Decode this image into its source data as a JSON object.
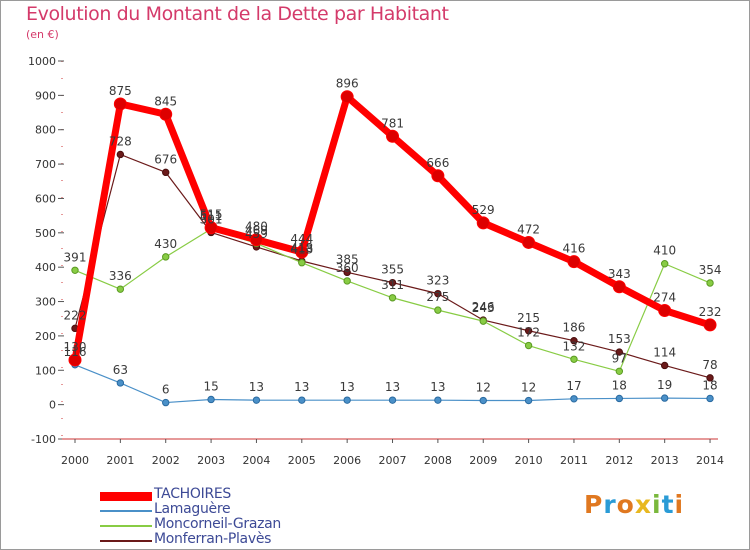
{
  "title": "Evolution du Montant de la Dette par Habitant",
  "unit_label": "(en €)",
  "logo": {
    "text": "Proxiti",
    "colors": [
      "#e07820",
      "#2a9bd6",
      "#e07820",
      "#e8b820",
      "#7ab83c",
      "#2a9bd6",
      "#e07820"
    ]
  },
  "chart_data": {
    "type": "line",
    "x": [
      "2000",
      "2001",
      "2002",
      "2003",
      "2004",
      "2005",
      "2006",
      "2007",
      "2008",
      "2009",
      "2010",
      "2011",
      "2012",
      "2013",
      "2014"
    ],
    "ylim": [
      -100,
      1000
    ],
    "yticks": [
      "-100",
      "0",
      "100",
      "200",
      "300",
      "400",
      "500",
      "600",
      "700",
      "800",
      "900",
      "1000"
    ],
    "grid": false,
    "legend_position": "bottom-left",
    "series": [
      {
        "name": "TACHOIRES",
        "color": "#ff0000",
        "values": [
          130,
          875,
          845,
          515,
          480,
          444,
          896,
          781,
          666,
          529,
          472,
          416,
          343,
          274,
          232
        ],
        "labels": [
          "130",
          "875",
          "845",
          "515",
          "480",
          "444",
          "896",
          "781",
          "666",
          "529",
          "472",
          "416",
          "343",
          "274",
          "232"
        ]
      },
      {
        "name": "Lamaguère",
        "color": "#4a90c8",
        "values": [
          116,
          63,
          6,
          15,
          13,
          13,
          13,
          13,
          13,
          12,
          12,
          17,
          18,
          19,
          18
        ],
        "labels": [
          "116",
          "63",
          "6",
          "15",
          "13",
          "13",
          "13",
          "13",
          "13",
          "12",
          "12",
          "17",
          "18",
          "19",
          "18"
        ]
      },
      {
        "name": "Moncorneil-Grazan",
        "color": "#88cc44",
        "values": [
          391,
          336,
          430,
          511,
          469,
          413,
          360,
          311,
          275,
          243,
          172,
          132,
          97,
          410,
          354
        ],
        "labels": [
          "391",
          "336",
          "430",
          "511",
          "469",
          "413",
          "360",
          "311",
          "275",
          "243",
          "172",
          "132",
          "97",
          "410",
          "354"
        ]
      },
      {
        "name": "Monferran-Plavès",
        "color": "#6b1a1a",
        "values": [
          222,
          728,
          676,
          501,
          459,
          418,
          385,
          355,
          323,
          246,
          215,
          186,
          153,
          114,
          78
        ],
        "labels": [
          "222",
          "728",
          "676",
          "501",
          "459",
          "418",
          "385",
          "355",
          "323",
          "246",
          "215",
          "186",
          "153",
          "114",
          "78"
        ]
      }
    ]
  }
}
